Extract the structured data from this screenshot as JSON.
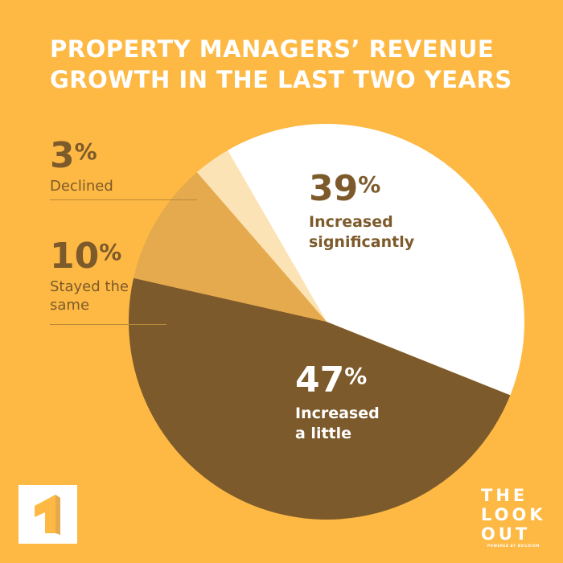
{
  "title": {
    "line1": "PROPERTY MANAGERS’ REVENUE",
    "line2": "GROWTH IN THE LAST TWO YEARS"
  },
  "chart_data": {
    "type": "pie",
    "title": "PROPERTY MANAGERS’ REVENUE GROWTH IN THE LAST TWO YEARS",
    "slices": [
      {
        "label": "Increased significantly",
        "value": 39,
        "color": "#FFFFFF"
      },
      {
        "label": "Increased a little",
        "value": 47,
        "color": "#7D5A2B"
      },
      {
        "label": "Stayed the same",
        "value": 10,
        "color": "#E5A94E"
      },
      {
        "label": "Declined",
        "value": 3,
        "color": "#FCE3B5"
      }
    ]
  },
  "labels": {
    "declined": {
      "value": "3",
      "sign": "%",
      "text": "Declined"
    },
    "same": {
      "value": "10",
      "sign": "%",
      "line1": "Stayed the",
      "line2": "same"
    },
    "significant": {
      "value": "39",
      "sign": "%",
      "line1": "Increased",
      "line2": "significantly"
    },
    "little": {
      "value": "47",
      "sign": "%",
      "line1": "Increased",
      "line2": "a little"
    }
  },
  "brand": {
    "line1": "THE",
    "line2": "LOOK",
    "line3": "OUT",
    "tagline": "POWERED BY BUILDIUM"
  },
  "colors": {
    "background": "#FDB943",
    "brown": "#7D5A2B",
    "white": "#FFFFFF"
  },
  "icons": {
    "app_logo": "buildium-logo-icon"
  }
}
